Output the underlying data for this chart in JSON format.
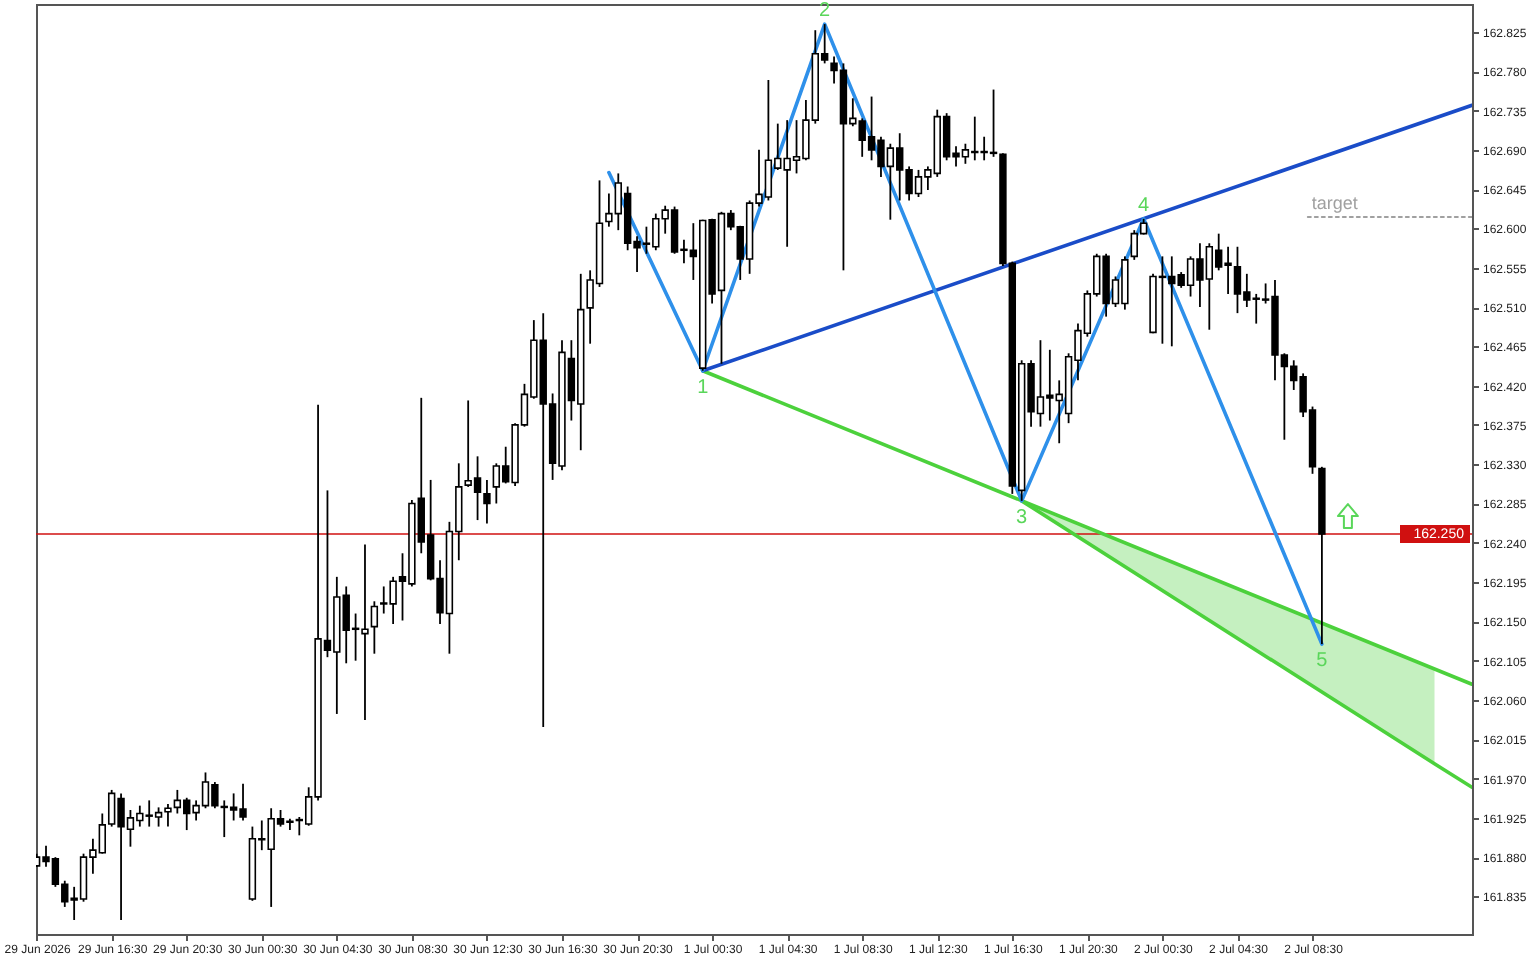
{
  "chart_data": {
    "type": "candlestick",
    "color": "#000000",
    "x": [
      "2026-06-29T12:30",
      "2026-06-29T13:00",
      "2026-06-29T13:30",
      "2026-06-29T14:00",
      "2026-06-29T14:30",
      "2026-06-29T15:00",
      "2026-06-29T15:30",
      "2026-06-29T16:00",
      "2026-06-29T16:30",
      "2026-06-29T17:00",
      "2026-06-29T17:30",
      "2026-06-29T18:00",
      "2026-06-29T18:30",
      "2026-06-29T19:00",
      "2026-06-29T19:30",
      "2026-06-29T20:00",
      "2026-06-29T20:30",
      "2026-06-29T21:00",
      "2026-06-29T21:30",
      "2026-06-29T22:00",
      "2026-06-29T22:30",
      "2026-06-29T23:00",
      "2026-06-29T23:30",
      "2026-06-30T00:00",
      "2026-06-30T00:30",
      "2026-06-30T01:00",
      "2026-06-30T01:30",
      "2026-06-30T02:00",
      "2026-06-30T02:30",
      "2026-06-30T03:00",
      "2026-06-30T03:30",
      "2026-06-30T04:00",
      "2026-06-30T04:30",
      "2026-06-30T05:00",
      "2026-06-30T05:30",
      "2026-06-30T06:00",
      "2026-06-30T06:30",
      "2026-06-30T07:00",
      "2026-06-30T07:30",
      "2026-06-30T08:00",
      "2026-06-30T08:30",
      "2026-06-30T09:00",
      "2026-06-30T09:30",
      "2026-06-30T10:00",
      "2026-06-30T10:30",
      "2026-06-30T11:00",
      "2026-06-30T11:30",
      "2026-06-30T12:00",
      "2026-06-30T12:30",
      "2026-06-30T13:00",
      "2026-06-30T13:30",
      "2026-06-30T14:00",
      "2026-06-30T14:30",
      "2026-06-30T15:00",
      "2026-06-30T15:30",
      "2026-06-30T16:00",
      "2026-06-30T16:30",
      "2026-06-30T17:00",
      "2026-06-30T17:30",
      "2026-06-30T18:00",
      "2026-06-30T18:30",
      "2026-06-30T19:00",
      "2026-06-30T19:30",
      "2026-06-30T20:00",
      "2026-06-30T20:30",
      "2026-06-30T21:00",
      "2026-06-30T21:30",
      "2026-06-30T22:00",
      "2026-06-30T22:30",
      "2026-06-30T23:00",
      "2026-06-30T23:30",
      "2026-07-01T00:00",
      "2026-07-01T00:30",
      "2026-07-01T01:00",
      "2026-07-01T01:30",
      "2026-07-01T02:00",
      "2026-07-01T02:30",
      "2026-07-01T03:00",
      "2026-07-01T03:30",
      "2026-07-01T04:00",
      "2026-07-01T04:30",
      "2026-07-01T05:00",
      "2026-07-01T05:30",
      "2026-07-01T06:00",
      "2026-07-01T06:30",
      "2026-07-01T07:00",
      "2026-07-01T07:30",
      "2026-07-01T08:00",
      "2026-07-01T08:30",
      "2026-07-01T09:00",
      "2026-07-01T09:30",
      "2026-07-01T10:00",
      "2026-07-01T10:30",
      "2026-07-01T11:00",
      "2026-07-01T11:30",
      "2026-07-01T12:00",
      "2026-07-01T12:30",
      "2026-07-01T13:00",
      "2026-07-01T13:30",
      "2026-07-01T14:00",
      "2026-07-01T14:30",
      "2026-07-01T15:00",
      "2026-07-01T15:30",
      "2026-07-01T16:00",
      "2026-07-01T16:30",
      "2026-07-01T17:00",
      "2026-07-01T17:30",
      "2026-07-01T18:00",
      "2026-07-01T18:30",
      "2026-07-01T19:00",
      "2026-07-01T19:30",
      "2026-07-01T20:00",
      "2026-07-01T20:30",
      "2026-07-01T21:00",
      "2026-07-01T21:30",
      "2026-07-01T22:00",
      "2026-07-01T22:30",
      "2026-07-01T23:00",
      "2026-07-01T23:30",
      "2026-07-02T00:00",
      "2026-07-02T00:30",
      "2026-07-02T01:00",
      "2026-07-02T01:30",
      "2026-07-02T02:00",
      "2026-07-02T02:30",
      "2026-07-02T03:00",
      "2026-07-02T03:30",
      "2026-07-02T04:00",
      "2026-07-02T04:30",
      "2026-07-02T05:00",
      "2026-07-02T05:30",
      "2026-07-02T06:00",
      "2026-07-02T06:30",
      "2026-07-02T07:00",
      "2026-07-02T07:30",
      "2026-07-02T08:00",
      "2026-07-02T08:30",
      "2026-07-02T09:00"
    ],
    "ohlc": [
      [
        161.87,
        161.884,
        161.869,
        161.88
      ],
      [
        161.88,
        161.893,
        161.869,
        161.875
      ],
      [
        161.878,
        161.88,
        161.846,
        161.849
      ],
      [
        161.849,
        161.853,
        161.823,
        161.829
      ],
      [
        161.833,
        161.846,
        161.808,
        161.831
      ],
      [
        161.832,
        161.884,
        161.829,
        161.88
      ],
      [
        161.88,
        161.901,
        161.861,
        161.888
      ],
      [
        161.885,
        161.93,
        161.884,
        161.917
      ],
      [
        161.918,
        161.957,
        161.915,
        161.953
      ],
      [
        161.947,
        161.953,
        161.808,
        161.915
      ],
      [
        161.912,
        161.934,
        161.892,
        161.925
      ],
      [
        161.922,
        161.939,
        161.915,
        161.93
      ],
      [
        161.927,
        161.945,
        161.915,
        161.928
      ],
      [
        161.926,
        161.937,
        161.915,
        161.931
      ],
      [
        161.932,
        161.941,
        161.915,
        161.936
      ],
      [
        161.937,
        161.957,
        161.93,
        161.945
      ],
      [
        161.945,
        161.948,
        161.911,
        161.93
      ],
      [
        161.931,
        161.945,
        161.922,
        161.939
      ],
      [
        161.939,
        161.977,
        161.936,
        161.966
      ],
      [
        161.963,
        161.966,
        161.936,
        161.939
      ],
      [
        161.938,
        161.945,
        161.903,
        161.937
      ],
      [
        161.937,
        161.953,
        161.922,
        161.934
      ],
      [
        161.935,
        161.964,
        161.922,
        161.926
      ],
      [
        161.832,
        161.915,
        161.83,
        161.901
      ],
      [
        161.901,
        161.922,
        161.888,
        161.9
      ],
      [
        161.889,
        161.936,
        161.823,
        161.924
      ],
      [
        161.924,
        161.934,
        161.915,
        161.918
      ],
      [
        161.921,
        161.924,
        161.911,
        161.92
      ],
      [
        161.922,
        161.926,
        161.905,
        161.923
      ],
      [
        161.918,
        161.96,
        161.916,
        161.949
      ],
      [
        161.949,
        162.398,
        161.945,
        162.13
      ],
      [
        162.128,
        162.3,
        162.109,
        162.117
      ],
      [
        162.115,
        162.201,
        162.044,
        162.178
      ],
      [
        162.18,
        162.19,
        162.102,
        162.14
      ],
      [
        162.141,
        162.159,
        162.105,
        162.142
      ],
      [
        162.136,
        162.238,
        162.037,
        162.141
      ],
      [
        162.144,
        162.173,
        162.113,
        162.167
      ],
      [
        162.17,
        162.19,
        162.159,
        162.171
      ],
      [
        162.17,
        162.201,
        162.147,
        162.196
      ],
      [
        162.201,
        162.228,
        162.151,
        162.196
      ],
      [
        162.193,
        162.289,
        162.19,
        162.285
      ],
      [
        162.291,
        162.406,
        162.228,
        162.241
      ],
      [
        162.249,
        162.312,
        162.197,
        162.199
      ],
      [
        162.199,
        162.22,
        162.147,
        162.16
      ],
      [
        162.159,
        162.264,
        162.113,
        162.253
      ],
      [
        162.253,
        162.331,
        162.22,
        162.304
      ],
      [
        162.306,
        162.403,
        162.304,
        162.311
      ],
      [
        162.314,
        162.339,
        162.266,
        162.298
      ],
      [
        162.296,
        162.312,
        162.262,
        162.285
      ],
      [
        162.304,
        162.331,
        162.285,
        162.328
      ],
      [
        162.328,
        162.35,
        162.308,
        162.31
      ],
      [
        162.309,
        162.377,
        162.305,
        162.375
      ],
      [
        162.375,
        162.422,
        162.373,
        162.41
      ],
      [
        162.407,
        162.495,
        162.405,
        162.472
      ],
      [
        162.472,
        162.503,
        162.029,
        162.399
      ],
      [
        162.399,
        162.411,
        162.312,
        162.331
      ],
      [
        162.328,
        162.472,
        162.323,
        162.458
      ],
      [
        162.451,
        162.472,
        162.38,
        162.403
      ],
      [
        162.399,
        162.548,
        162.346,
        162.507
      ],
      [
        162.509,
        162.552,
        162.468,
        162.541
      ],
      [
        162.537,
        162.655,
        162.533,
        162.606
      ],
      [
        162.608,
        162.64,
        162.602,
        162.617
      ],
      [
        162.617,
        162.663,
        162.598,
        162.652
      ],
      [
        162.64,
        162.648,
        162.575,
        162.583
      ],
      [
        162.585,
        162.591,
        162.55,
        162.578
      ],
      [
        162.583,
        162.602,
        162.571,
        162.582
      ],
      [
        162.579,
        162.617,
        162.575,
        162.611
      ],
      [
        162.611,
        162.626,
        162.594,
        162.621
      ],
      [
        162.621,
        162.625,
        162.571,
        162.573
      ],
      [
        162.575,
        162.587,
        162.56,
        162.576
      ],
      [
        162.575,
        162.606,
        162.541,
        162.568
      ],
      [
        162.44,
        162.61,
        162.437,
        162.609
      ],
      [
        162.61,
        162.611,
        162.514,
        162.525
      ],
      [
        162.529,
        162.619,
        162.445,
        162.617
      ],
      [
        162.617,
        162.621,
        162.598,
        162.602
      ],
      [
        162.602,
        162.603,
        162.541,
        162.565
      ],
      [
        162.565,
        162.632,
        162.548,
        162.629
      ],
      [
        162.629,
        162.69,
        162.625,
        162.639
      ],
      [
        162.636,
        162.77,
        162.632,
        162.678
      ],
      [
        162.669,
        162.72,
        162.667,
        162.68
      ],
      [
        162.667,
        162.724,
        162.579,
        162.68
      ],
      [
        162.678,
        162.724,
        162.663,
        162.682
      ],
      [
        162.68,
        162.747,
        162.678,
        162.724
      ],
      [
        162.724,
        162.827,
        162.72,
        162.8
      ],
      [
        162.8,
        162.834,
        162.789,
        162.793
      ],
      [
        162.789,
        162.797,
        162.766,
        162.781
      ],
      [
        162.781,
        162.789,
        162.552,
        162.72
      ],
      [
        162.72,
        162.749,
        162.717,
        162.726
      ],
      [
        162.723,
        162.726,
        162.682,
        162.701
      ],
      [
        162.705,
        162.751,
        162.678,
        162.69
      ],
      [
        162.701,
        162.705,
        162.659,
        162.671
      ],
      [
        162.671,
        162.697,
        162.61,
        162.692
      ],
      [
        162.692,
        162.709,
        162.632,
        162.667
      ],
      [
        162.667,
        162.671,
        162.632,
        162.64
      ],
      [
        162.64,
        162.667,
        162.636,
        162.659
      ],
      [
        162.659,
        162.671,
        162.644,
        162.667
      ],
      [
        162.663,
        162.736,
        162.659,
        162.728
      ],
      [
        162.728,
        162.732,
        162.678,
        162.682
      ],
      [
        162.686,
        162.694,
        162.671,
        162.682
      ],
      [
        162.682,
        162.697,
        162.674,
        162.69
      ],
      [
        162.687,
        162.728,
        162.678,
        162.688
      ],
      [
        162.688,
        162.705,
        162.678,
        162.687
      ],
      [
        162.687,
        162.759,
        162.682,
        162.686
      ],
      [
        162.685,
        162.686,
        162.557,
        162.56
      ],
      [
        162.56,
        162.562,
        162.296,
        162.305
      ],
      [
        162.3,
        162.449,
        162.288,
        162.445
      ],
      [
        162.445,
        162.449,
        162.373,
        162.39
      ],
      [
        162.388,
        162.472,
        162.373,
        162.407
      ],
      [
        162.409,
        162.461,
        162.38,
        162.406
      ],
      [
        162.403,
        162.426,
        162.354,
        162.41
      ],
      [
        162.388,
        162.457,
        162.377,
        162.453
      ],
      [
        162.449,
        162.491,
        162.426,
        162.483
      ],
      [
        162.48,
        162.529,
        162.476,
        162.525
      ],
      [
        162.525,
        162.571,
        162.522,
        162.568
      ],
      [
        162.568,
        162.571,
        162.499,
        162.514
      ],
      [
        162.514,
        162.545,
        162.51,
        162.541
      ],
      [
        162.514,
        162.568,
        162.507,
        162.564
      ],
      [
        162.568,
        162.598,
        162.564,
        162.594
      ],
      [
        162.594,
        162.611,
        162.593,
        162.606
      ],
      [
        162.481,
        162.548,
        162.48,
        162.545
      ],
      [
        162.545,
        162.568,
        162.468,
        162.544
      ],
      [
        162.545,
        162.568,
        162.465,
        162.537
      ],
      [
        162.547,
        162.55,
        162.532,
        162.535
      ],
      [
        162.535,
        162.568,
        162.522,
        162.565
      ],
      [
        162.565,
        162.583,
        162.51,
        162.541
      ],
      [
        162.542,
        162.583,
        162.484,
        162.579
      ],
      [
        162.575,
        162.594,
        162.552,
        162.556
      ],
      [
        162.56,
        162.579,
        162.525,
        162.558
      ],
      [
        162.556,
        162.579,
        162.503,
        162.525
      ],
      [
        162.527,
        162.548,
        162.51,
        162.518
      ],
      [
        162.52,
        162.525,
        162.491,
        162.519
      ],
      [
        162.519,
        162.537,
        162.514,
        162.518
      ],
      [
        162.522,
        162.541,
        162.426,
        162.455
      ],
      [
        162.455,
        162.457,
        162.358,
        162.442
      ],
      [
        162.442,
        162.449,
        162.415,
        162.426
      ],
      [
        162.43,
        162.434,
        162.384,
        162.39
      ],
      [
        162.392,
        162.396,
        162.319,
        162.327
      ],
      [
        162.325,
        162.327,
        162.124,
        162.25
      ]
    ],
    "xlim": [
      "2026-06-29T12:28",
      "2026-07-02T17:00"
    ],
    "ylim": [
      161.792,
      162.857
    ],
    "xticks": [
      {
        "value": "2026-06-29T12:30",
        "label": "29 Jun 2026"
      },
      {
        "value": "2026-06-29T16:30",
        "label": "29 Jun 16:30"
      },
      {
        "value": "2026-06-29T20:30",
        "label": "29 Jun 20:30"
      },
      {
        "value": "2026-06-30T00:30",
        "label": "30 Jun 00:30"
      },
      {
        "value": "2026-06-30T04:30",
        "label": "30 Jun 04:30"
      },
      {
        "value": "2026-06-30T08:30",
        "label": "30 Jun 08:30"
      },
      {
        "value": "2026-06-30T12:30",
        "label": "30 Jun 12:30"
      },
      {
        "value": "2026-06-30T16:30",
        "label": "30 Jun 16:30"
      },
      {
        "value": "2026-06-30T20:30",
        "label": "30 Jun 20:30"
      },
      {
        "value": "2026-07-01T00:30",
        "label": "1 Jul 00:30"
      },
      {
        "value": "2026-07-01T04:30",
        "label": "1 Jul 04:30"
      },
      {
        "value": "2026-07-01T08:30",
        "label": "1 Jul 08:30"
      },
      {
        "value": "2026-07-01T12:30",
        "label": "1 Jul 12:30"
      },
      {
        "value": "2026-07-01T16:30",
        "label": "1 Jul 16:30"
      },
      {
        "value": "2026-07-01T20:30",
        "label": "1 Jul 20:30"
      },
      {
        "value": "2026-07-02T00:30",
        "label": "2 Jul 00:30"
      },
      {
        "value": "2026-07-02T04:30",
        "label": "2 Jul 04:30"
      },
      {
        "value": "2026-07-02T08:30",
        "label": "2 Jul 08:30"
      }
    ],
    "yticks": [
      162.825,
      {
        "value": 162.78,
        "label": "162.780"
      },
      162.735,
      {
        "value": 162.69,
        "label": "162.690"
      },
      162.645,
      {
        "value": 162.6,
        "label": "162.600"
      },
      162.555,
      {
        "value": 162.51,
        "label": "162.510"
      },
      162.465,
      {
        "value": 162.42,
        "label": "162.420"
      },
      162.375,
      {
        "value": 162.33,
        "label": "162.330"
      },
      162.285,
      {
        "value": 162.24,
        "label": "162.240"
      },
      162.195,
      {
        "value": 162.15,
        "label": "162.150"
      },
      162.105,
      {
        "value": 162.06,
        "label": "162.060"
      },
      162.015,
      {
        "value": 161.97,
        "label": "161.970"
      },
      161.925,
      {
        "value": 161.88,
        "label": "161.880"
      },
      161.835
    ],
    "series": [
      {
        "type": "line",
        "color": "#4cd13c",
        "x": [
          "2026-07-01T00:00",
          "2026-07-02T17:00"
        ],
        "values": [
          162.437,
          162.078
        ]
      },
      {
        "type": "line",
        "color": "#4cd13c",
        "x": [
          "2026-07-01T17:00",
          "2026-07-02T15:00",
          "2026-07-02T17:00"
        ],
        "values": [
          162.288,
          161.987,
          161.96
        ],
        "lower": [
          162.288,
          161.987,
          null
        ],
        "upper": [
          162.288,
          162.095,
          null
        ]
      },
      {
        "type": "line",
        "color": "#1a4cc8",
        "x": [
          "2026-07-01T00:00",
          "2026-07-02T17:00"
        ],
        "values": [
          162.437,
          162.741
        ]
      },
      {
        "type": "line",
        "color": "#2e90ea",
        "x": [
          "2026-06-30T19:00",
          "2026-07-01T00:00",
          "2026-07-01T06:30",
          "2026-07-01T17:00",
          "2026-07-01T23:30",
          "2026-07-02T09:00"
        ],
        "values": [
          162.664,
          162.437,
          162.834,
          162.288,
          162.611,
          162.124
        ]
      },
      {
        "type": "line",
        "name": "target",
        "color": "#a0a0a0",
        "line_style": "dotted",
        "x": [
          "2026-07-02T08:15",
          "2026-07-02T17:00"
        ],
        "values": [
          162.613,
          162.613
        ]
      }
    ],
    "annotations": [
      {
        "text": "1",
        "x": "2026-07-01T00:00",
        "y": 162.437
      },
      {
        "text": "2",
        "x": "2026-07-01T06:30",
        "y": 162.834
      },
      {
        "text": "3",
        "x": "2026-07-01T17:00",
        "y": 162.288
      },
      {
        "text": "4",
        "x": "2026-07-01T23:30",
        "y": 162.611
      },
      {
        "text": "5",
        "x": "2026-07-02T09:00",
        "y": 162.124
      }
    ],
    "ref_lines": [
      {
        "axis": "y",
        "value": 162.25,
        "label": "162.250",
        "color": "#d01010"
      }
    ]
  }
}
